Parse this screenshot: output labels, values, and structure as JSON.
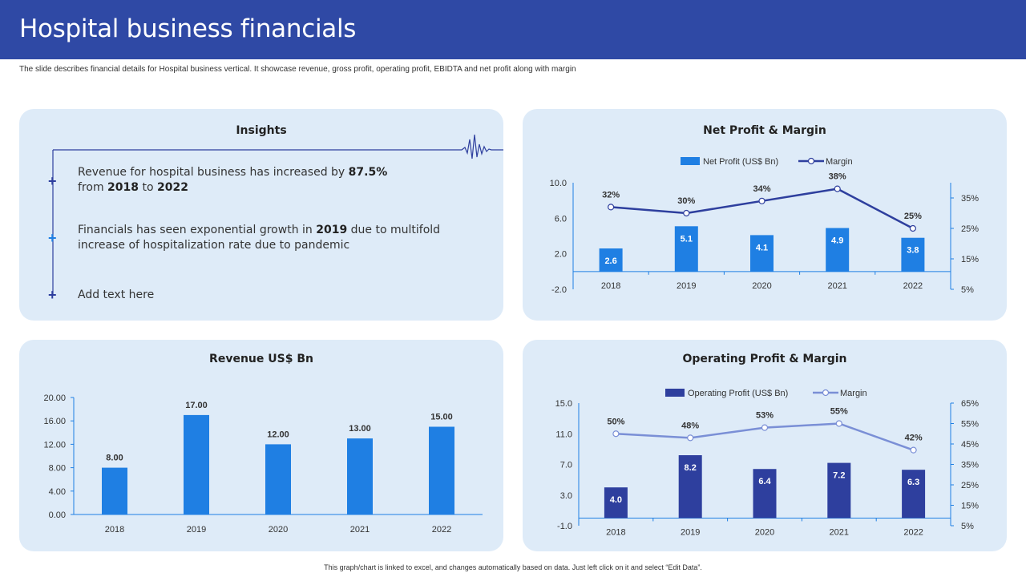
{
  "header": {
    "title": "Hospital business financials"
  },
  "subtitle": "The slide describes financial details for Hospital business vertical. It showcase revenue, gross profit, operating profit, EBIDTA and net profit along with margin",
  "footer": "This graph/chart is linked to excel, and changes automatically based on data. Just left click on it and select “Edit Data”.",
  "insights": {
    "title": "Insights",
    "items": [
      {
        "line1_pre": "Revenue for hospital business has increased by ",
        "line1_bold": "87.5%",
        "line2_pre": "from ",
        "line2_b1": "2018",
        "line2_mid": " to ",
        "line2_b2": "2022"
      },
      {
        "line1_pre": "Financials has seen exponential growth in ",
        "line1_bold": "2019",
        "line1_post": " due to multifold",
        "line2": "increase of hospitalization rate due to pandemic"
      },
      {
        "line1": "Add text here"
      }
    ]
  },
  "colors": {
    "header": "#2f49a5",
    "panel": "#deebf8",
    "bar_light": "#1f7fe3",
    "bar_dark": "#2e3f9e",
    "line_dark": "#2e3f9e",
    "line_light": "#7a8fd6"
  },
  "chart_data": [
    {
      "id": "net-profit",
      "type": "bar",
      "title": "Net Profit & Margin",
      "categories": [
        "2018",
        "2019",
        "2020",
        "2021",
        "2022"
      ],
      "series": [
        {
          "name": "Net Profit (US$ Bn)",
          "type": "bar",
          "values": [
            2.6,
            5.1,
            4.1,
            4.9,
            3.8
          ],
          "labels": [
            "2.6",
            "5.1",
            "4.1",
            "4.9",
            "3.8"
          ],
          "axis": "left"
        },
        {
          "name": "Margin",
          "type": "line",
          "values": [
            32,
            30,
            34,
            38,
            25
          ],
          "labels": [
            "32%",
            "30%",
            "34%",
            "38%",
            "25%"
          ],
          "axis": "right"
        }
      ],
      "ylim": [
        -2,
        10
      ],
      "yticks": [
        "10.0",
        "6.0",
        "2.0",
        "-2.0"
      ],
      "ytick_values": [
        10,
        6,
        2,
        -2
      ],
      "y2lim": [
        5,
        40
      ],
      "y2ticks": [
        "35%",
        "25%",
        "15%",
        "5%"
      ],
      "y2tick_values": [
        35,
        25,
        15,
        5
      ],
      "legend": "top"
    },
    {
      "id": "revenue",
      "type": "bar",
      "title": "Revenue US$ Bn",
      "categories": [
        "2018",
        "2019",
        "2020",
        "2021",
        "2022"
      ],
      "values": [
        8.0,
        17.0,
        12.0,
        13.0,
        15.0
      ],
      "labels": [
        "8.00",
        "17.00",
        "12.00",
        "13.00",
        "15.00"
      ],
      "ylim": [
        0,
        20
      ],
      "yticks": [
        "20.00",
        "16.00",
        "12.00",
        "8.00",
        "4.00",
        "0.00"
      ],
      "ytick_values": [
        20,
        16,
        12,
        8,
        4,
        0
      ]
    },
    {
      "id": "operating-profit",
      "type": "bar",
      "title": "Operating Profit & Margin",
      "categories": [
        "2018",
        "2019",
        "2020",
        "2021",
        "2022"
      ],
      "series": [
        {
          "name": "Operating Profit (US$ Bn)",
          "type": "bar",
          "values": [
            4.0,
            8.2,
            6.4,
            7.2,
            6.3
          ],
          "labels": [
            "4.0",
            "8.2",
            "6.4",
            "7.2",
            "6.3"
          ],
          "axis": "left"
        },
        {
          "name": "Margin",
          "type": "line",
          "values": [
            50,
            48,
            53,
            55,
            42
          ],
          "labels": [
            "50%",
            "48%",
            "53%",
            "55%",
            "42%"
          ],
          "axis": "right"
        }
      ],
      "ylim": [
        -1,
        15
      ],
      "yticks": [
        "15.0",
        "11.0",
        "7.0",
        "3.0",
        "-1.0"
      ],
      "ytick_values": [
        15,
        11,
        7,
        3,
        -1
      ],
      "y2lim": [
        5,
        65
      ],
      "y2ticks": [
        "65%",
        "55%",
        "45%",
        "35%",
        "25%",
        "15%",
        "5%"
      ],
      "y2tick_values": [
        65,
        55,
        45,
        35,
        25,
        15,
        5
      ],
      "legend": "top"
    }
  ]
}
